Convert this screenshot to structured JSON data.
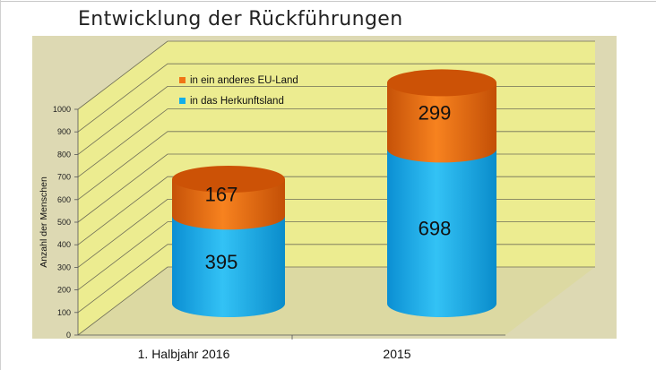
{
  "page": {
    "title": "Entwicklung  der Rückführungen"
  },
  "colors": {
    "orange": "#f07416",
    "orange_top": "#cc5206",
    "blue": "#14aee8",
    "blue_top": "#0a8fd1",
    "wall": "#ecec90",
    "floor": "#dcd9a2",
    "frame": "#ddd9b3",
    "grid": "#6f6e58"
  },
  "chart_data": {
    "type": "bar",
    "stacked": true,
    "style": "3d-cylinder",
    "categories": [
      "1. Halbjahr 2016",
      "2015"
    ],
    "series": [
      {
        "name": "in das Herkunftsland",
        "values": [
          395,
          698
        ],
        "color": "#14aee8"
      },
      {
        "name": "in ein anderes EU-Land",
        "values": [
          167,
          299
        ],
        "color": "#f07416"
      }
    ],
    "ylabel": "Anzahl der Menschen",
    "xlabel": "",
    "ylim": [
      0,
      1000
    ],
    "yticks": [
      0,
      100,
      200,
      300,
      400,
      500,
      600,
      700,
      800,
      900,
      1000
    ],
    "grid": true,
    "legend_position": "top-left"
  }
}
